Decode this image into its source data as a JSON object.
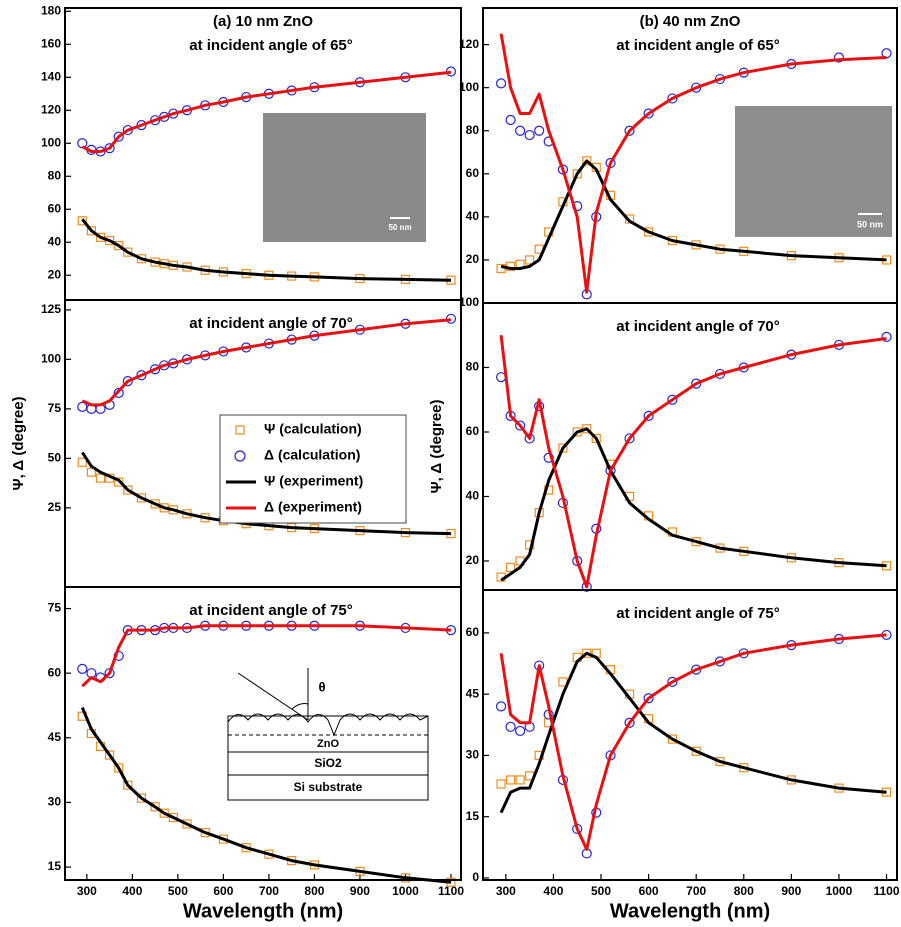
{
  "chart_data": [
    {
      "type": "line",
      "subtitle": "(a) 10 nm ZnO",
      "title": "at incident angle of 65°",
      "annotations": [
        "50 nm"
      ],
      "x": [
        290,
        310,
        330,
        350,
        370,
        390,
        420,
        450,
        470,
        490,
        520,
        560,
        600,
        650,
        700,
        750,
        800,
        900,
        1000,
        1100
      ],
      "xlim": [
        252,
        1122
      ],
      "ylim": [
        5,
        182
      ],
      "yticks": [
        20,
        40,
        60,
        80,
        100,
        120,
        140,
        160,
        180
      ],
      "series": [
        {
          "color": "#f08c1e",
          "marker": "square",
          "values": [
            53,
            47,
            43,
            41,
            38,
            34,
            30,
            28,
            27,
            26,
            25,
            23,
            22,
            21,
            20,
            19.5,
            19,
            18,
            17.5,
            17
          ]
        },
        {
          "color": "#2222dd",
          "marker": "circle",
          "values": [
            100,
            96,
            95,
            97,
            104,
            108,
            111,
            114,
            116,
            118,
            120,
            123,
            125,
            128,
            130,
            132,
            134,
            137,
            140,
            143.5
          ]
        },
        {
          "color": "#000000",
          "values": [
            54,
            47,
            43,
            41,
            38,
            34,
            30,
            28,
            27,
            26,
            25,
            23,
            22,
            21,
            20,
            19.5,
            19,
            18,
            17.5,
            17
          ]
        },
        {
          "color": "#e81010",
          "values": [
            98,
            95,
            95,
            97,
            104,
            108,
            111,
            114,
            116,
            118,
            120,
            123,
            125,
            128,
            130,
            132,
            134,
            137,
            140,
            143
          ]
        }
      ]
    },
    {
      "type": "line",
      "title": "at incident angle of 70°",
      "ylabel": "Ψ, Δ (degree)",
      "x": [
        290,
        310,
        330,
        350,
        370,
        390,
        420,
        450,
        470,
        490,
        520,
        560,
        600,
        650,
        700,
        750,
        800,
        900,
        1000,
        1100
      ],
      "xlim": [
        252,
        1122
      ],
      "ylim": [
        -15,
        130
      ],
      "yticks": [
        25,
        50,
        75,
        100,
        125
      ],
      "series": [
        {
          "name": "Ψ (calculation)",
          "color": "#f08c1e",
          "marker": "square",
          "values": [
            48,
            43,
            40,
            40,
            38,
            34,
            30,
            27,
            25,
            24,
            22,
            20,
            18.5,
            17,
            16,
            15,
            14.5,
            13.5,
            12.5,
            12
          ]
        },
        {
          "name": "Δ (calculation)",
          "color": "#2222dd",
          "marker": "circle",
          "values": [
            76,
            75,
            75,
            77,
            83,
            89,
            92,
            95,
            97,
            98,
            100,
            102,
            104,
            106,
            108,
            110,
            112,
            115,
            118,
            120.5
          ]
        },
        {
          "name": "Ψ (experiment)",
          "color": "#000000",
          "values": [
            53,
            46,
            43,
            41,
            39,
            34,
            30,
            27,
            25,
            24,
            22,
            20,
            18.5,
            17,
            16,
            15,
            14.5,
            13.5,
            12.5,
            12
          ]
        },
        {
          "name": "Δ (experiment)",
          "color": "#e81010",
          "values": [
            79,
            77,
            77,
            79,
            84,
            89,
            92,
            95,
            97,
            98,
            100,
            102,
            104,
            106,
            108,
            110,
            112,
            115,
            118,
            120
          ]
        }
      ]
    },
    {
      "type": "line",
      "title": "at incident angle of 75°",
      "xlabel": "Wavelength (nm)",
      "annotations": [
        "θ",
        "ZnO",
        "SiO2",
        "Si substrate"
      ],
      "x": [
        290,
        310,
        330,
        350,
        370,
        390,
        420,
        450,
        470,
        490,
        520,
        560,
        600,
        650,
        700,
        750,
        800,
        900,
        1000,
        1100
      ],
      "xlim": [
        252,
        1122
      ],
      "xticks": [
        300,
        400,
        500,
        600,
        700,
        800,
        900,
        1000,
        1100
      ],
      "ylim": [
        12,
        80
      ],
      "yticks": [
        15,
        30,
        45,
        60,
        75
      ],
      "series": [
        {
          "color": "#f08c1e",
          "marker": "square",
          "values": [
            50,
            46,
            43,
            41,
            38,
            34,
            31,
            29,
            27.5,
            26.5,
            25,
            23,
            21.5,
            19.5,
            18,
            16.5,
            15.5,
            14,
            12.5,
            11.5
          ]
        },
        {
          "color": "#2222dd",
          "marker": "circle",
          "values": [
            61,
            60,
            59,
            60,
            64,
            70,
            70,
            70,
            70.5,
            70.5,
            70.5,
            71,
            71,
            71,
            71,
            71,
            71,
            71,
            70.5,
            70
          ]
        },
        {
          "color": "#000000",
          "values": [
            52,
            47,
            44,
            41,
            38,
            34,
            31,
            29,
            27.5,
            26.5,
            25,
            23,
            21.5,
            19.5,
            18,
            16.5,
            15.5,
            14,
            12.5,
            11.5
          ]
        },
        {
          "color": "#e81010",
          "values": [
            57,
            59,
            58,
            60,
            66,
            70,
            70,
            70,
            70.5,
            70.5,
            70.5,
            71,
            71,
            71,
            71,
            71,
            71,
            71,
            70.5,
            70
          ]
        }
      ]
    },
    {
      "type": "line",
      "subtitle": "(b) 40 nm ZnO",
      "title": "at incident angle of 65°",
      "annotations": [
        "50 nm"
      ],
      "x": [
        290,
        310,
        330,
        350,
        370,
        390,
        420,
        450,
        470,
        490,
        520,
        560,
        600,
        650,
        700,
        750,
        800,
        900,
        1000,
        1100
      ],
      "xlim": [
        252,
        1122
      ],
      "ylim": [
        0,
        137
      ],
      "yticks": [
        20,
        40,
        60,
        80,
        100,
        120
      ],
      "series": [
        {
          "color": "#f08c1e",
          "marker": "square",
          "values": [
            16,
            17,
            18,
            20,
            25,
            33,
            47,
            60,
            66,
            63,
            50,
            39,
            33,
            29,
            27,
            25,
            24,
            22,
            21,
            20
          ]
        },
        {
          "color": "#2222dd",
          "marker": "circle",
          "values": [
            102,
            85,
            80,
            78,
            80,
            75,
            62,
            45,
            4,
            40,
            65,
            80,
            88,
            95,
            100,
            104,
            107,
            111,
            114,
            116
          ]
        },
        {
          "color": "#000000",
          "values": [
            17,
            16,
            16,
            17,
            20,
            30,
            45,
            60,
            66,
            62,
            48,
            38,
            33,
            29,
            27,
            25,
            24,
            22,
            21,
            20
          ]
        },
        {
          "color": "#e81010",
          "values": [
            125,
            100,
            88,
            88,
            97,
            80,
            62,
            40,
            5,
            42,
            65,
            80,
            88,
            95,
            100,
            104,
            107,
            111,
            113,
            114
          ]
        }
      ]
    },
    {
      "type": "line",
      "title": "at incident angle of 70°",
      "ylabel": "Ψ, Δ (degree)",
      "x": [
        290,
        310,
        330,
        350,
        370,
        390,
        420,
        450,
        470,
        490,
        520,
        560,
        600,
        650,
        700,
        750,
        800,
        900,
        1000,
        1100
      ],
      "xlim": [
        252,
        1122
      ],
      "ylim": [
        11,
        100
      ],
      "yticks": [
        20,
        40,
        60,
        80,
        100
      ],
      "series": [
        {
          "color": "#f08c1e",
          "marker": "square",
          "values": [
            15,
            18,
            20,
            25,
            35,
            42,
            55,
            60,
            61,
            58,
            50,
            40,
            34,
            29,
            26,
            24,
            23,
            21,
            19.5,
            18.5
          ]
        },
        {
          "color": "#2222dd",
          "marker": "circle",
          "values": [
            77,
            65,
            62,
            58,
            68,
            52,
            38,
            20,
            12,
            30,
            48,
            58,
            65,
            70,
            75,
            78,
            80,
            84,
            87,
            89.5
          ]
        },
        {
          "color": "#000000",
          "values": [
            14,
            16,
            18,
            22,
            35,
            45,
            55,
            60,
            61,
            58,
            48,
            38,
            33,
            28,
            26,
            24,
            23,
            21,
            19.5,
            18.5
          ]
        },
        {
          "color": "#e81010",
          "values": [
            90,
            65,
            62,
            58,
            70,
            55,
            40,
            20,
            12,
            28,
            48,
            58,
            65,
            70,
            75,
            78,
            80,
            84,
            87,
            89
          ]
        }
      ]
    },
    {
      "type": "line",
      "title": "at incident angle of 75°",
      "xlabel": "Wavelength (nm)",
      "x": [
        290,
        310,
        330,
        350,
        370,
        390,
        420,
        450,
        470,
        490,
        520,
        560,
        600,
        650,
        700,
        750,
        800,
        900,
        1000,
        1100
      ],
      "xlim": [
        252,
        1122
      ],
      "xticks": [
        300,
        400,
        500,
        600,
        700,
        800,
        900,
        1000,
        1100
      ],
      "ylim": [
        -0.5,
        70.5
      ],
      "yticks": [
        0,
        15,
        30,
        45,
        60
      ],
      "series": [
        {
          "color": "#f08c1e",
          "marker": "square",
          "values": [
            23,
            24,
            24,
            25,
            30,
            38,
            48,
            54,
            55,
            55,
            51,
            45,
            39,
            34,
            31,
            28.5,
            27,
            24,
            22,
            21
          ]
        },
        {
          "color": "#2222dd",
          "marker": "circle",
          "values": [
            42,
            37,
            36,
            37,
            52,
            40,
            24,
            12,
            6,
            16,
            30,
            38,
            44,
            48,
            51,
            53,
            55,
            57,
            58.5,
            59.5
          ]
        },
        {
          "color": "#000000",
          "values": [
            16,
            21,
            22,
            22,
            28,
            35,
            45,
            53,
            55,
            54,
            50,
            44,
            38,
            34,
            31,
            28.5,
            27,
            24,
            22,
            21
          ]
        },
        {
          "color": "#e81010",
          "values": [
            55,
            40,
            38,
            38,
            52,
            42,
            25,
            12,
            7,
            18,
            30,
            38,
            44,
            48,
            51,
            53,
            55,
            57,
            58.5,
            59.5
          ]
        }
      ]
    }
  ]
}
